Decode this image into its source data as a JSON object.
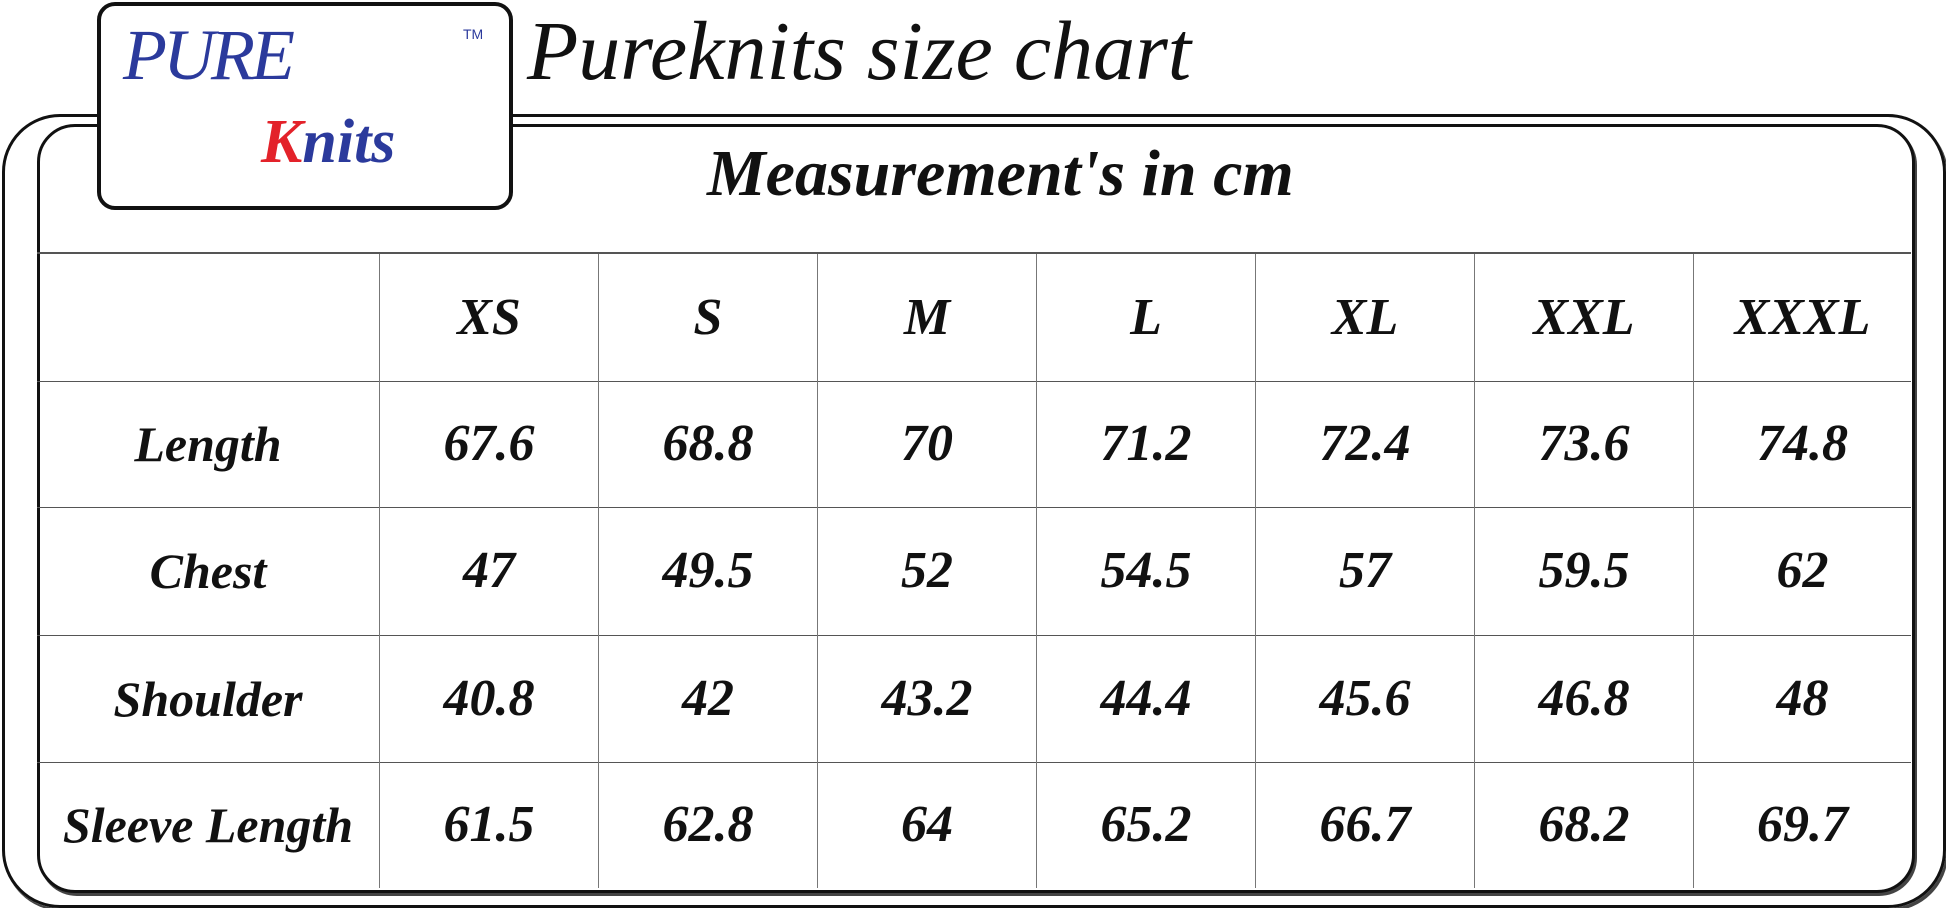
{
  "logo": {
    "word1": "PURE",
    "word2_initial": "K",
    "word2_rest": "nits",
    "trademark": "TM",
    "colors": {
      "blue": "#2b3a9c",
      "red": "#e3222a"
    }
  },
  "title": "Pureknits size chart",
  "subtitle": "Measurement's in cm",
  "table": {
    "sizes": [
      "XS",
      "S",
      "M",
      "L",
      "XL",
      "XXL",
      "XXXL"
    ],
    "rows": [
      {
        "label": "Length",
        "values": [
          "67.6",
          "68.8",
          "70",
          "71.2",
          "72.4",
          "73.6",
          "74.8"
        ]
      },
      {
        "label": "Chest",
        "values": [
          "47",
          "49.5",
          "52",
          "54.5",
          "57",
          "59.5",
          "62"
        ]
      },
      {
        "label": "Shoulder",
        "values": [
          "40.8",
          "42",
          "43.2",
          "44.4",
          "45.6",
          "46.8",
          "48"
        ]
      },
      {
        "label": "Sleeve Length",
        "values": [
          "61.5",
          "62.8",
          "64",
          "65.2",
          "66.7",
          "68.2",
          "69.7"
        ]
      }
    ]
  }
}
